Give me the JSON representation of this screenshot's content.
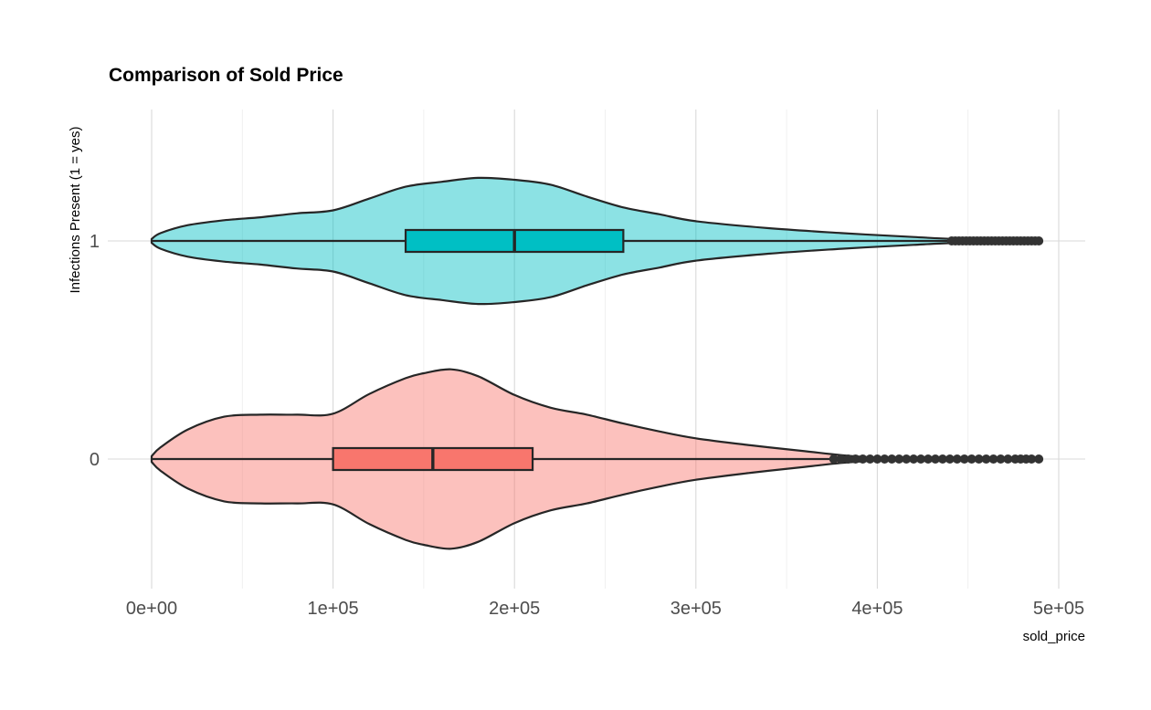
{
  "chart_data": {
    "type": "violin",
    "title": "Comparison of Sold Price",
    "xlabel": "sold_price",
    "ylabel": "Infections Present (1 = yes)",
    "xlim": [
      0,
      500000
    ],
    "x_ticks": [
      0,
      100000,
      200000,
      300000,
      400000,
      500000
    ],
    "x_tick_labels": [
      "0e+00",
      "1e+05",
      "2e+05",
      "3e+05",
      "4e+05",
      "5e+05"
    ],
    "y_categories": [
      "0",
      "1"
    ],
    "grid": true,
    "legend": "none",
    "series": [
      {
        "group": "1",
        "color": "#00BFC4",
        "box": {
          "q1": 140000,
          "median": 200000,
          "q3": 260000,
          "whisker_low": 0,
          "whisker_high": 440000
        },
        "outliers": [
          441000,
          443000,
          445000,
          447000,
          449000,
          451000,
          453000,
          455000,
          457000,
          459000,
          461000,
          463000,
          465000,
          467000,
          469000,
          471000,
          473000,
          475000,
          477000,
          479000,
          481000,
          483000,
          485000,
          487000,
          489000
        ],
        "density": [
          [
            0,
            0.02
          ],
          [
            5000,
            0.08
          ],
          [
            20000,
            0.16
          ],
          [
            40000,
            0.21
          ],
          [
            60000,
            0.24
          ],
          [
            80000,
            0.28
          ],
          [
            100000,
            0.31
          ],
          [
            120000,
            0.43
          ],
          [
            140000,
            0.55
          ],
          [
            160000,
            0.6
          ],
          [
            180000,
            0.64
          ],
          [
            200000,
            0.62
          ],
          [
            220000,
            0.57
          ],
          [
            240000,
            0.45
          ],
          [
            260000,
            0.34
          ],
          [
            280000,
            0.27
          ],
          [
            300000,
            0.2
          ],
          [
            340000,
            0.13
          ],
          [
            380000,
            0.08
          ],
          [
            420000,
            0.04
          ],
          [
            450000,
            0.015
          ],
          [
            490000,
            0.005
          ]
        ]
      },
      {
        "group": "0",
        "color": "#F8766D",
        "box": {
          "q1": 100000,
          "median": 155000,
          "q3": 210000,
          "whisker_low": 0,
          "whisker_high": 375000
        },
        "outliers": [
          376000,
          380000,
          384000,
          388000,
          392000,
          396000,
          400000,
          404000,
          408000,
          412000,
          416000,
          420000,
          424000,
          428000,
          432000,
          436000,
          440000,
          444000,
          448000,
          452000,
          456000,
          460000,
          464000,
          468000,
          472000,
          476000,
          479000,
          482000,
          485000,
          489000
        ],
        "density": [
          [
            0,
            0.03
          ],
          [
            5000,
            0.12
          ],
          [
            20000,
            0.3
          ],
          [
            40000,
            0.43
          ],
          [
            60000,
            0.45
          ],
          [
            80000,
            0.45
          ],
          [
            100000,
            0.46
          ],
          [
            120000,
            0.66
          ],
          [
            140000,
            0.82
          ],
          [
            150000,
            0.87
          ],
          [
            165000,
            0.91
          ],
          [
            180000,
            0.84
          ],
          [
            200000,
            0.65
          ],
          [
            220000,
            0.52
          ],
          [
            240000,
            0.45
          ],
          [
            260000,
            0.36
          ],
          [
            280000,
            0.28
          ],
          [
            300000,
            0.21
          ],
          [
            330000,
            0.14
          ],
          [
            360000,
            0.08
          ],
          [
            380000,
            0.04
          ],
          [
            400000,
            0.015
          ],
          [
            430000,
            0.008
          ],
          [
            490000,
            0.004
          ]
        ]
      }
    ]
  }
}
